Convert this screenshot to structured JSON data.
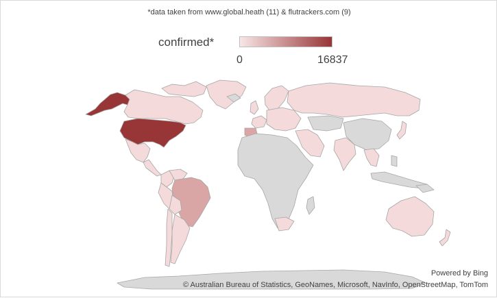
{
  "source_note": "*data taken from www.global.heath (11) & flutrackers.com (9)",
  "legend": {
    "title": "confirmed*",
    "min_label": "0",
    "max_label": "16837",
    "color_low": "#f8e6e6",
    "color_high": "#973537"
  },
  "attribution": {
    "powered_by": "Powered by Bing",
    "copyright": "© Australian Bureau of Statistics, GeoNames, Microsoft, NavInfo, OpenStreetMap, TomTom"
  },
  "colors": {
    "no_data": "#d9d9d9",
    "border": "#a6a6a6",
    "low": "#f4dada",
    "mid": "#daa5a5",
    "high": "#973537"
  },
  "regions": [
    {
      "name": "Alaska",
      "level": "high"
    },
    {
      "name": "Canada",
      "level": "low"
    },
    {
      "name": "United States",
      "level": "high"
    },
    {
      "name": "Greenland",
      "level": "low"
    },
    {
      "name": "Mexico",
      "level": "low"
    },
    {
      "name": "Central America",
      "level": "low"
    },
    {
      "name": "Colombia",
      "level": "low"
    },
    {
      "name": "Venezuela",
      "level": "low"
    },
    {
      "name": "Peru",
      "level": "low"
    },
    {
      "name": "Brazil",
      "level": "mid"
    },
    {
      "name": "Bolivia",
      "level": "low"
    },
    {
      "name": "Argentina",
      "level": "low"
    },
    {
      "name": "Chile",
      "level": "low"
    },
    {
      "name": "Iceland",
      "level": "none"
    },
    {
      "name": "United Kingdom",
      "level": "low"
    },
    {
      "name": "Spain",
      "level": "mid"
    },
    {
      "name": "France",
      "level": "low"
    },
    {
      "name": "Europe",
      "level": "low"
    },
    {
      "name": "Scandinavia",
      "level": "low"
    },
    {
      "name": "Russia",
      "level": "low"
    },
    {
      "name": "Middle East",
      "level": "low"
    },
    {
      "name": "India",
      "level": "low"
    },
    {
      "name": "China",
      "level": "none"
    },
    {
      "name": "Japan",
      "level": "low"
    },
    {
      "name": "Southeast Asia",
      "level": "low"
    },
    {
      "name": "Indonesia",
      "level": "none"
    },
    {
      "name": "Africa",
      "level": "none"
    },
    {
      "name": "South Africa",
      "level": "low"
    },
    {
      "name": "Australia",
      "level": "low"
    },
    {
      "name": "New Zealand",
      "level": "low"
    },
    {
      "name": "Antarctica",
      "level": "none"
    }
  ]
}
